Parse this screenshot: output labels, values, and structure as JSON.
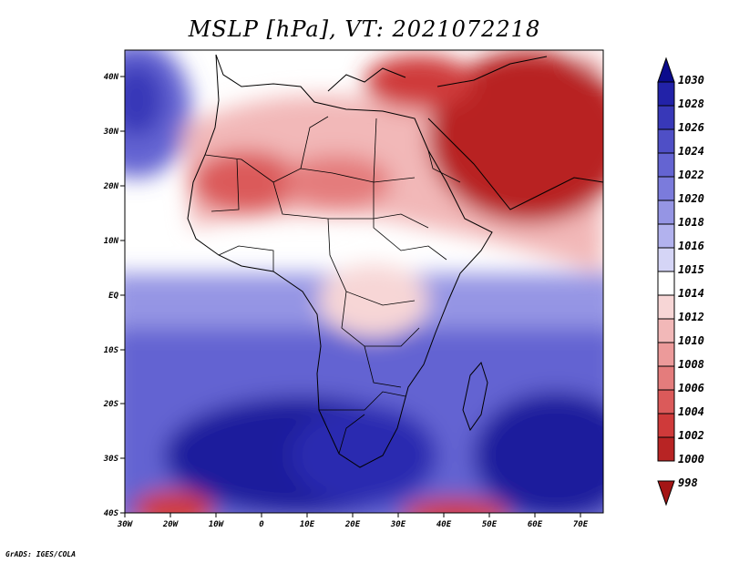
{
  "title": "MSLP [hPa], VT: 2021072218",
  "credit": "GrADS: IGES/COLA",
  "map": {
    "lat_labels": [
      "40N",
      "30N",
      "20N",
      "10N",
      "EQ",
      "10S",
      "20S",
      "30S",
      "40S"
    ],
    "lon_labels": [
      "30W",
      "20W",
      "10W",
      "0",
      "10E",
      "20E",
      "30E",
      "40E",
      "50E",
      "60E",
      "70E"
    ]
  },
  "colorbar": {
    "levels": [
      "1030",
      "1028",
      "1026",
      "1024",
      "1022",
      "1020",
      "1018",
      "1016",
      "1015",
      "1014",
      "1012",
      "1010",
      "1008",
      "1006",
      "1004",
      "1002",
      "1000",
      "998"
    ],
    "colors": [
      "#0b0b8c",
      "#2222a8",
      "#3838b8",
      "#4f4fc6",
      "#6464d2",
      "#7b7bdc",
      "#9595e4",
      "#b2b2ee",
      "#d5d5f6",
      "#ffffff",
      "#f7d6d6",
      "#f2b8b8",
      "#ec9a9a",
      "#e47c7c",
      "#db5a5a",
      "#cf3a3a",
      "#b82424",
      "#a41515"
    ]
  }
}
